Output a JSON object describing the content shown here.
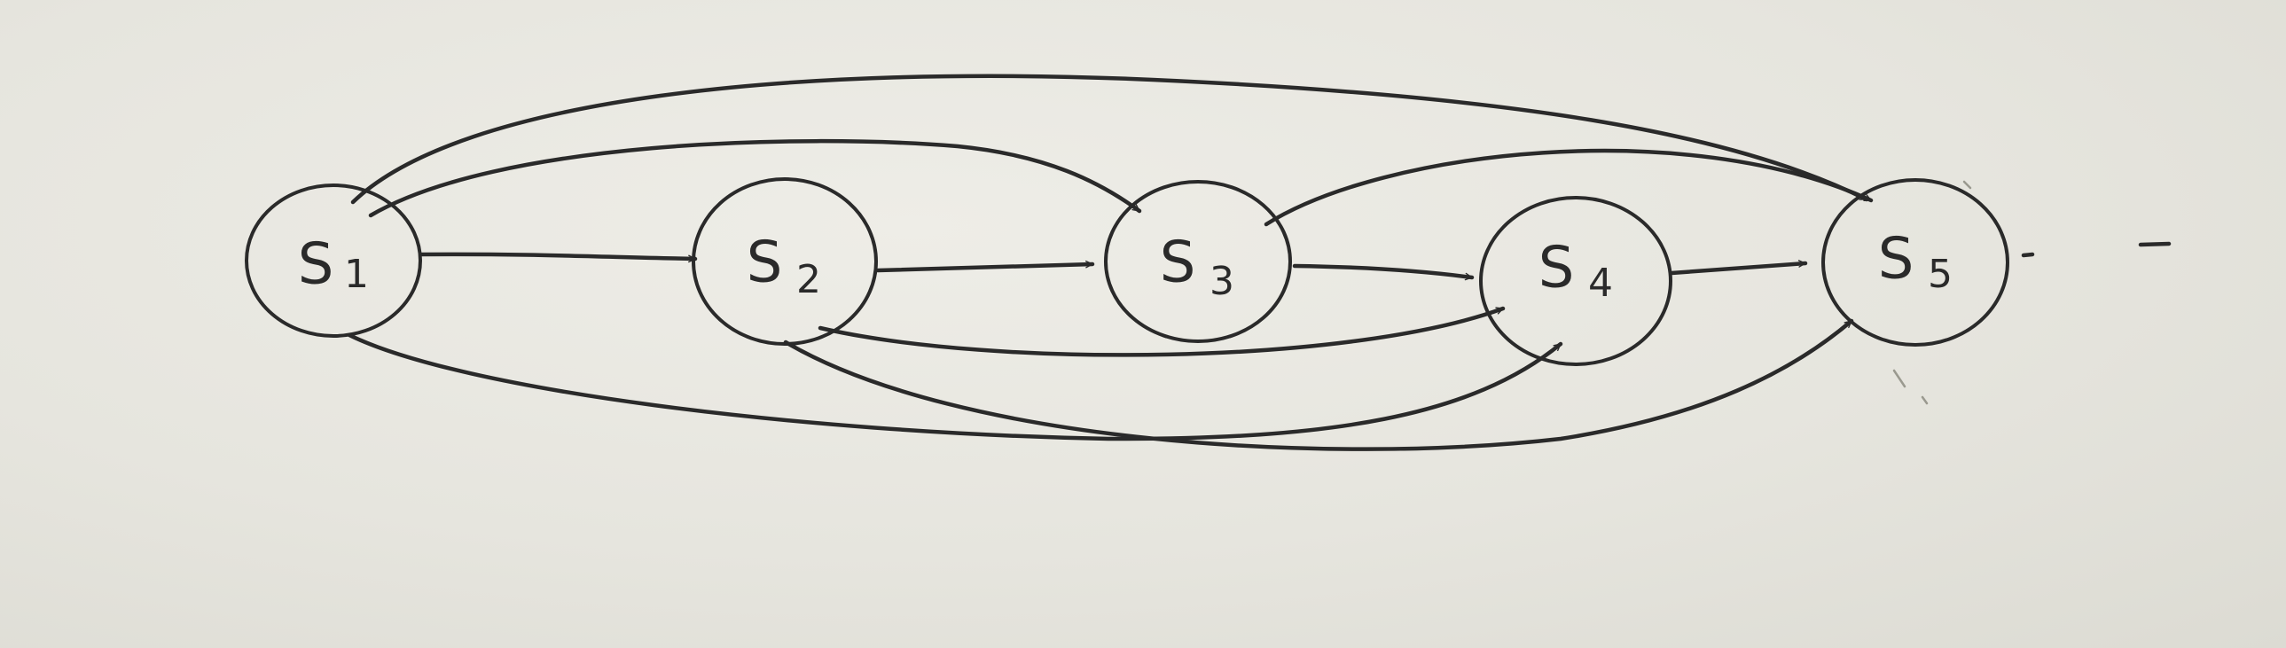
{
  "diagram": {
    "nodes": [
      {
        "id": "s1",
        "main": "S",
        "sub": "1"
      },
      {
        "id": "s2",
        "main": "S",
        "sub": "2"
      },
      {
        "id": "s3",
        "main": "S",
        "sub": "3"
      },
      {
        "id": "s4",
        "main": "S",
        "sub": "4"
      },
      {
        "id": "s5",
        "main": "S",
        "sub": "5"
      }
    ],
    "edges": [
      {
        "from": "s1",
        "to": "s2"
      },
      {
        "from": "s2",
        "to": "s3"
      },
      {
        "from": "s3",
        "to": "s4"
      },
      {
        "from": "s4",
        "to": "s5"
      },
      {
        "from": "s1",
        "to": "s3"
      },
      {
        "from": "s1",
        "to": "s5"
      },
      {
        "from": "s3",
        "to": "s5"
      },
      {
        "from": "s2",
        "to": "s4"
      },
      {
        "from": "s2",
        "to": "s5"
      },
      {
        "from": "s1",
        "to": "s4"
      }
    ],
    "continuation": true
  },
  "colors": {
    "ink": "#2a2a2a",
    "paper": "#e7e6df"
  }
}
